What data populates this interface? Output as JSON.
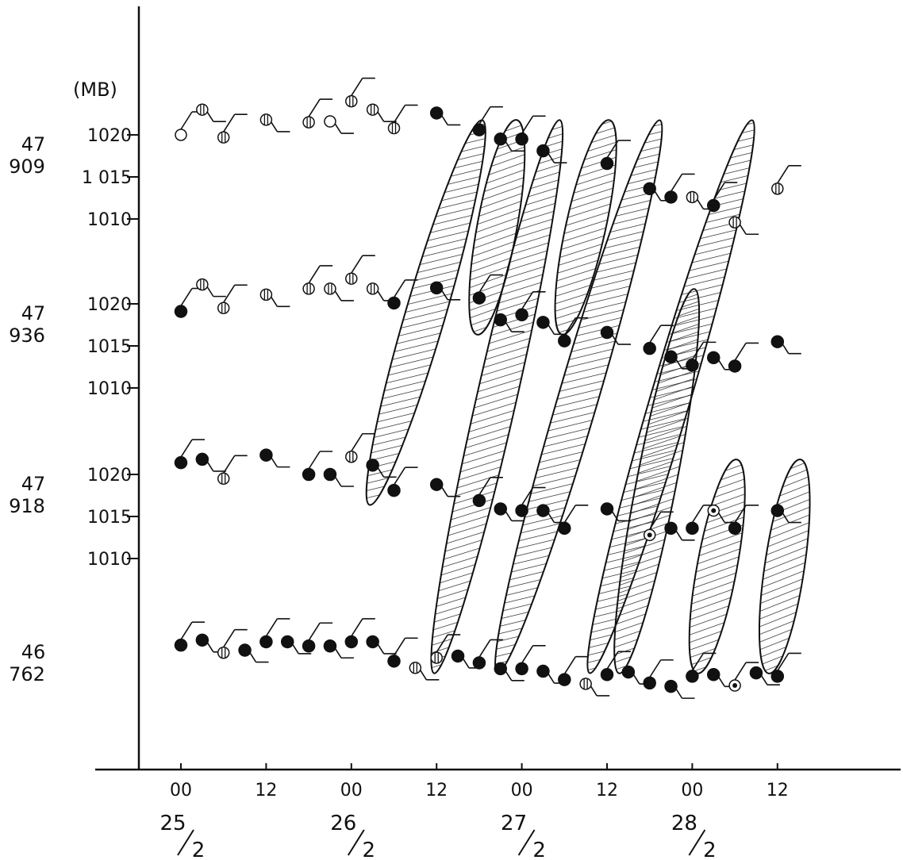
{
  "chart_data": {
    "type": "scatter",
    "unit_label": "(MB)",
    "x_tick_labels": [
      "00",
      "12",
      "00",
      "12",
      "00",
      "12",
      "00",
      "12"
    ],
    "x_tick_hours": [
      0,
      12,
      24,
      36,
      48,
      60,
      72,
      84
    ],
    "dates": [
      {
        "day": "25",
        "month": "2",
        "hour": 0
      },
      {
        "day": "26",
        "month": "2",
        "hour": 24
      },
      {
        "day": "27",
        "month": "2",
        "hour": 48
      },
      {
        "day": "28",
        "month": "2",
        "hour": 72
      }
    ],
    "stations": [
      {
        "region": "47",
        "id": "909",
        "y_ticks": [
          1020,
          1015,
          1010
        ],
        "y_tick_labels": [
          "1020",
          "1 015",
          "1010"
        ],
        "ylim": [
          1009,
          1030
        ],
        "observations": [
          {
            "t": 0,
            "p": 1020,
            "fill": "open"
          },
          {
            "t": 3,
            "p": 1023,
            "fill": "partial"
          },
          {
            "t": 6,
            "p": 1019.7,
            "fill": "partial"
          },
          {
            "t": 12,
            "p": 1021.8,
            "fill": "partial"
          },
          {
            "t": 18,
            "p": 1021.5,
            "fill": "partial"
          },
          {
            "t": 21,
            "p": 1021.6,
            "fill": "open"
          },
          {
            "t": 24,
            "p": 1024,
            "fill": "partial"
          },
          {
            "t": 27,
            "p": 1023,
            "fill": "partial"
          },
          {
            "t": 30,
            "p": 1020.8,
            "fill": "partial"
          },
          {
            "t": 36,
            "p": 1022.6,
            "fill": "filled"
          },
          {
            "t": 42,
            "p": 1020.6,
            "fill": "filled"
          },
          {
            "t": 45,
            "p": 1019.5,
            "fill": "filled"
          },
          {
            "t": 48,
            "p": 1019.5,
            "fill": "filled"
          },
          {
            "t": 51,
            "p": 1018.1,
            "fill": "filled"
          },
          {
            "t": 60,
            "p": 1016.6,
            "fill": "filled"
          },
          {
            "t": 66,
            "p": 1013.6,
            "fill": "filled"
          },
          {
            "t": 69,
            "p": 1012.6,
            "fill": "filled"
          },
          {
            "t": 72,
            "p": 1012.6,
            "fill": "partial"
          },
          {
            "t": 75,
            "p": 1011.6,
            "fill": "filled"
          },
          {
            "t": 78,
            "p": 1009.6,
            "fill": "partial"
          },
          {
            "t": 84,
            "p": 1013.6,
            "fill": "partial"
          }
        ]
      },
      {
        "region": "47",
        "id": "936",
        "y_ticks": [
          1020,
          1015,
          1010
        ],
        "y_tick_labels": [
          "1020",
          "1015",
          "1010"
        ],
        "ylim": [
          1009,
          1030
        ],
        "observations": [
          {
            "t": 0,
            "p": 1019.1,
            "fill": "filled"
          },
          {
            "t": 3,
            "p": 1022.3,
            "fill": "partial"
          },
          {
            "t": 6,
            "p": 1019.5,
            "fill": "partial"
          },
          {
            "t": 12,
            "p": 1021.1,
            "fill": "partial"
          },
          {
            "t": 18,
            "p": 1021.8,
            "fill": "partial"
          },
          {
            "t": 21,
            "p": 1021.8,
            "fill": "partial"
          },
          {
            "t": 24,
            "p": 1023,
            "fill": "partial"
          },
          {
            "t": 27,
            "p": 1021.8,
            "fill": "partial"
          },
          {
            "t": 30,
            "p": 1020.1,
            "fill": "filled"
          },
          {
            "t": 36,
            "p": 1021.9,
            "fill": "filled"
          },
          {
            "t": 42,
            "p": 1020.7,
            "fill": "filled"
          },
          {
            "t": 45,
            "p": 1018.1,
            "fill": "filled"
          },
          {
            "t": 48,
            "p": 1018.7,
            "fill": "filled"
          },
          {
            "t": 51,
            "p": 1017.8,
            "fill": "filled"
          },
          {
            "t": 54,
            "p": 1015.6,
            "fill": "filled"
          },
          {
            "t": 60,
            "p": 1016.6,
            "fill": "filled"
          },
          {
            "t": 66,
            "p": 1014.7,
            "fill": "filled"
          },
          {
            "t": 69,
            "p": 1013.7,
            "fill": "filled"
          },
          {
            "t": 72,
            "p": 1012.7,
            "fill": "filled"
          },
          {
            "t": 75,
            "p": 1013.6,
            "fill": "filled"
          },
          {
            "t": 78,
            "p": 1012.6,
            "fill": "filled"
          },
          {
            "t": 84,
            "p": 1015.5,
            "fill": "filled"
          }
        ]
      },
      {
        "region": "47",
        "id": "918",
        "y_ticks": [
          1020,
          1015,
          1010
        ],
        "y_tick_labels": [
          "1020",
          "1015",
          "1010"
        ],
        "ylim": [
          1009,
          1030
        ],
        "observations": [
          {
            "t": 0,
            "p": 1021.4,
            "fill": "filled"
          },
          {
            "t": 3,
            "p": 1021.8,
            "fill": "filled"
          },
          {
            "t": 6,
            "p": 1019.5,
            "fill": "partial"
          },
          {
            "t": 12,
            "p": 1022.3,
            "fill": "filled"
          },
          {
            "t": 18,
            "p": 1020,
            "fill": "filled"
          },
          {
            "t": 21,
            "p": 1020,
            "fill": "filled"
          },
          {
            "t": 24,
            "p": 1022.1,
            "fill": "partial"
          },
          {
            "t": 27,
            "p": 1021.1,
            "fill": "filled"
          },
          {
            "t": 30,
            "p": 1018.1,
            "fill": "filled"
          },
          {
            "t": 36,
            "p": 1018.8,
            "fill": "filled"
          },
          {
            "t": 42,
            "p": 1016.9,
            "fill": "filled"
          },
          {
            "t": 45,
            "p": 1015.9,
            "fill": "filled"
          },
          {
            "t": 48,
            "p": 1015.7,
            "fill": "filled"
          },
          {
            "t": 51,
            "p": 1015.7,
            "fill": "filled"
          },
          {
            "t": 54,
            "p": 1013.6,
            "fill": "filled"
          },
          {
            "t": 60,
            "p": 1015.9,
            "fill": "filled"
          },
          {
            "t": 66,
            "p": 1012.8,
            "fill": "station"
          },
          {
            "t": 69,
            "p": 1013.6,
            "fill": "filled"
          },
          {
            "t": 72,
            "p": 1013.6,
            "fill": "filled"
          },
          {
            "t": 75,
            "p": 1015.7,
            "fill": "station"
          },
          {
            "t": 78,
            "p": 1013.6,
            "fill": "filled"
          },
          {
            "t": 84,
            "p": 1015.7,
            "fill": "filled"
          }
        ]
      },
      {
        "region": "46",
        "id": "762",
        "y_ticks": [],
        "y_tick_labels": [],
        "ylim": [
          1009,
          1030
        ],
        "observations": [
          {
            "t": 0,
            "p": 1019.7,
            "fill": "filled"
          },
          {
            "t": 3,
            "p": 1020.3,
            "fill": "filled"
          },
          {
            "t": 6,
            "p": 1018.8,
            "fill": "partial"
          },
          {
            "t": 9,
            "p": 1019.1,
            "fill": "filled"
          },
          {
            "t": 12,
            "p": 1020.1,
            "fill": "filled"
          },
          {
            "t": 15,
            "p": 1020.1,
            "fill": "filled"
          },
          {
            "t": 18,
            "p": 1019.6,
            "fill": "filled"
          },
          {
            "t": 21,
            "p": 1019.6,
            "fill": "filled"
          },
          {
            "t": 24,
            "p": 1020.1,
            "fill": "filled"
          },
          {
            "t": 27,
            "p": 1020.1,
            "fill": "filled"
          },
          {
            "t": 30,
            "p": 1017.8,
            "fill": "filled"
          },
          {
            "t": 33,
            "p": 1017,
            "fill": "partial"
          },
          {
            "t": 36,
            "p": 1018.2,
            "fill": "partial"
          },
          {
            "t": 39,
            "p": 1018.4,
            "fill": "filled"
          },
          {
            "t": 42,
            "p": 1017.6,
            "fill": "filled"
          },
          {
            "t": 45,
            "p": 1016.9,
            "fill": "filled"
          },
          {
            "t": 48,
            "p": 1016.9,
            "fill": "filled"
          },
          {
            "t": 51,
            "p": 1016.6,
            "fill": "filled"
          },
          {
            "t": 54,
            "p": 1015.6,
            "fill": "filled"
          },
          {
            "t": 57,
            "p": 1015.1,
            "fill": "partial"
          },
          {
            "t": 60,
            "p": 1016.2,
            "fill": "filled"
          },
          {
            "t": 63,
            "p": 1016.5,
            "fill": "filled"
          },
          {
            "t": 66,
            "p": 1015.2,
            "fill": "filled"
          },
          {
            "t": 69,
            "p": 1014.8,
            "fill": "filled"
          },
          {
            "t": 72,
            "p": 1016,
            "fill": "filled"
          },
          {
            "t": 75,
            "p": 1016.2,
            "fill": "filled"
          },
          {
            "t": 78,
            "p": 1014.9,
            "fill": "station"
          },
          {
            "t": 81,
            "p": 1016.4,
            "fill": "filled"
          },
          {
            "t": 84,
            "p": 1016,
            "fill": "filled"
          }
        ]
      }
    ],
    "hatched_bands": [
      {
        "stations": [
          "47909",
          "47918"
        ],
        "t_top": 42,
        "t_bottom": 27
      },
      {
        "stations": [
          "47909",
          "47936"
        ],
        "t_top": 47,
        "t_bottom": 42
      },
      {
        "stations": [
          "47909",
          "46762"
        ],
        "t_top": 53,
        "t_bottom": 36
      },
      {
        "stations": [
          "47909",
          "47936"
        ],
        "t_top": 60,
        "t_bottom": 54
      },
      {
        "stations": [
          "47909",
          "46762"
        ],
        "t_top": 67,
        "t_bottom": 45
      },
      {
        "stations": [
          "47909",
          "46762"
        ],
        "t_top": 80,
        "t_bottom": 58
      },
      {
        "stations": [
          "47936",
          "46762"
        ],
        "t_top": 72,
        "t_bottom": 62
      },
      {
        "stations": [
          "47918",
          "46762"
        ],
        "t_top": 78,
        "t_bottom": 73
      },
      {
        "stations": [
          "47918",
          "46762"
        ],
        "t_top": 87,
        "t_bottom": 83
      }
    ],
    "x_scale": "hours from 00 25/2",
    "grid": false,
    "legend": "none"
  }
}
